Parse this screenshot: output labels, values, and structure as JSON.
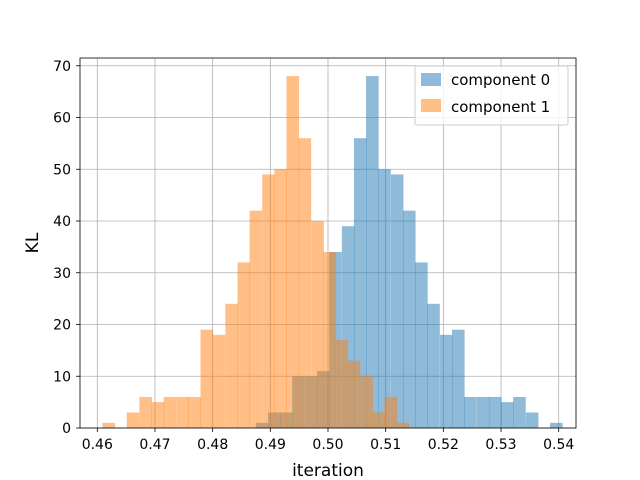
{
  "chart_data": {
    "type": "histogram",
    "xlabel": "iteration",
    "ylabel": "KL",
    "xlim": [
      0.457,
      0.543
    ],
    "ylim": [
      0,
      71.5
    ],
    "bin_width": 0.00213,
    "xticks": [
      "0.46",
      "0.47",
      "0.48",
      "0.49",
      "0.50",
      "0.51",
      "0.52",
      "0.53",
      "0.54"
    ],
    "xtick_values": [
      0.46,
      0.47,
      0.48,
      0.49,
      0.5,
      0.51,
      0.52,
      0.53,
      0.54
    ],
    "yticks": [
      "0",
      "10",
      "20",
      "30",
      "40",
      "50",
      "60",
      "70"
    ],
    "ytick_values": [
      0,
      10,
      20,
      30,
      40,
      50,
      60,
      70
    ],
    "grid": true,
    "legend_position": "top-right",
    "series": [
      {
        "name": "component 0",
        "color": "#1f77b4",
        "alpha": 0.5,
        "bins": [
          [
            0.4875,
            1
          ],
          [
            0.4896,
            3
          ],
          [
            0.4917,
            3
          ],
          [
            0.4938,
            10
          ],
          [
            0.496,
            10
          ],
          [
            0.4981,
            11
          ],
          [
            0.5002,
            34
          ],
          [
            0.5024,
            39
          ],
          [
            0.5045,
            56
          ],
          [
            0.5066,
            68
          ],
          [
            0.5087,
            50
          ],
          [
            0.5109,
            49
          ],
          [
            0.513,
            42
          ],
          [
            0.5151,
            32
          ],
          [
            0.5172,
            24
          ],
          [
            0.5194,
            18
          ],
          [
            0.5215,
            19
          ],
          [
            0.5236,
            6
          ],
          [
            0.5258,
            6
          ],
          [
            0.5279,
            6
          ],
          [
            0.53,
            5
          ],
          [
            0.5321,
            6
          ],
          [
            0.5343,
            3
          ],
          [
            0.5385,
            1
          ]
        ]
      },
      {
        "name": "component 1",
        "color": "#ff7f0e",
        "alpha": 0.5,
        "bins": [
          [
            0.4609,
            1
          ],
          [
            0.4651,
            3
          ],
          [
            0.4673,
            6
          ],
          [
            0.4694,
            5
          ],
          [
            0.4715,
            6
          ],
          [
            0.4737,
            6
          ],
          [
            0.4758,
            6
          ],
          [
            0.4779,
            19
          ],
          [
            0.48,
            18
          ],
          [
            0.4822,
            24
          ],
          [
            0.4843,
            32
          ],
          [
            0.4864,
            42
          ],
          [
            0.4886,
            49
          ],
          [
            0.4907,
            50
          ],
          [
            0.4928,
            68
          ],
          [
            0.4949,
            56
          ],
          [
            0.4971,
            40
          ],
          [
            0.4992,
            34
          ],
          [
            0.5013,
            17
          ],
          [
            0.5034,
            13
          ],
          [
            0.5056,
            10
          ],
          [
            0.5077,
            3
          ],
          [
            0.5098,
            6
          ],
          [
            0.5119,
            1
          ]
        ]
      }
    ]
  }
}
